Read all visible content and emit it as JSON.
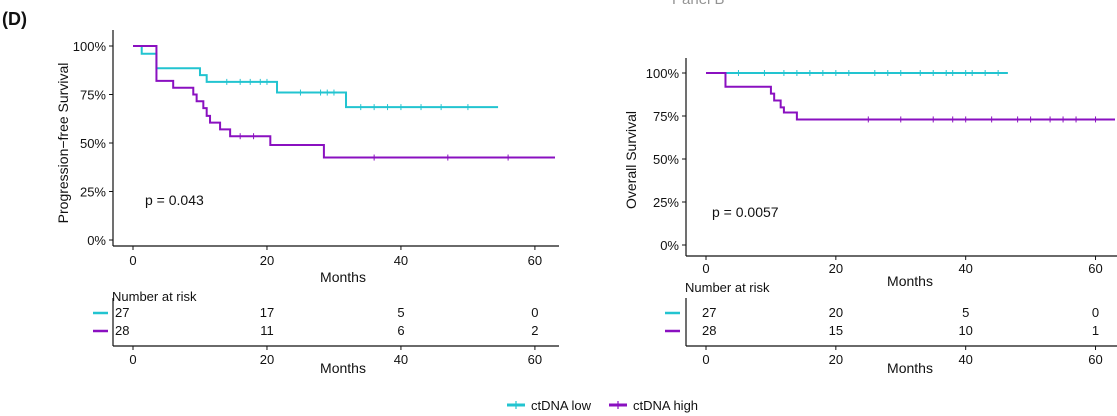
{
  "panel_label": "(D)",
  "panel_header": "Panel B",
  "legend": {
    "items": [
      {
        "label": "ctDNA low",
        "color": "#22c4d0"
      },
      {
        "label": "ctDNA high",
        "color": "#8a10c0"
      }
    ]
  },
  "chart_data": [
    {
      "type": "line",
      "subtype": "kaplan-meier",
      "title": "",
      "ylabel": "Progression−free Survival",
      "xlabel": "Months",
      "x_ticks": [
        0,
        20,
        40,
        60
      ],
      "x_tick_labels": [
        "0",
        "20",
        "40",
        "60"
      ],
      "y_ticks": [
        0,
        25,
        50,
        75,
        100
      ],
      "y_tick_labels": [
        "0%",
        "25%",
        "50%",
        "75%",
        "100%"
      ],
      "xlim": [
        0,
        63
      ],
      "ylim": [
        0,
        100
      ],
      "annotation": "p = 0.043",
      "series": [
        {
          "name": "ctDNA low",
          "color": "#22c4d0",
          "steps": [
            [
              0,
              100
            ],
            [
              1.3,
              96
            ],
            [
              3.5,
              88.5
            ],
            [
              10,
              85
            ],
            [
              11,
              81.5
            ],
            [
              21.5,
              76
            ],
            [
              31.8,
              68.5
            ],
            [
              54.5,
              68.5
            ]
          ],
          "censors": [
            14,
            16,
            17.5,
            19,
            20,
            25,
            28,
            29,
            30,
            34,
            36,
            38,
            40,
            43,
            46,
            50
          ]
        },
        {
          "name": "ctDNA high",
          "color": "#8a10c0",
          "steps": [
            [
              0,
              100
            ],
            [
              3,
              100
            ],
            [
              3.5,
              82
            ],
            [
              6,
              78.5
            ],
            [
              9,
              75
            ],
            [
              9.5,
              71.5
            ],
            [
              10.5,
              68
            ],
            [
              11,
              64
            ],
            [
              11.5,
              60.5
            ],
            [
              13,
              57
            ],
            [
              14.5,
              53.5
            ],
            [
              20.5,
              49
            ],
            [
              28.5,
              42.5
            ],
            [
              63,
              42.5
            ]
          ],
          "censors": [
            16,
            18,
            36,
            47,
            56
          ]
        }
      ],
      "risk_table": {
        "title": "Number at risk",
        "x_ticks": [
          0,
          20,
          40,
          60
        ],
        "xlabel": "Months",
        "rows": [
          {
            "color": "#22c4d0",
            "values": [
              "27",
              "17",
              "5",
              "0"
            ]
          },
          {
            "color": "#8a10c0",
            "values": [
              "28",
              "11",
              "6",
              "2"
            ]
          }
        ]
      }
    },
    {
      "type": "line",
      "subtype": "kaplan-meier",
      "title": "",
      "ylabel": "Overall Survival",
      "xlabel": "Months",
      "x_ticks": [
        0,
        20,
        40,
        60
      ],
      "x_tick_labels": [
        "0",
        "20",
        "40",
        "60"
      ],
      "y_ticks": [
        0,
        25,
        50,
        75,
        100
      ],
      "y_tick_labels": [
        "0%",
        "25%",
        "50%",
        "75%",
        "100%"
      ],
      "xlim": [
        0,
        63
      ],
      "ylim": [
        0,
        100
      ],
      "annotation": "p = 0.0057",
      "series": [
        {
          "name": "ctDNA low",
          "color": "#22c4d0",
          "steps": [
            [
              0,
              100
            ],
            [
              46.5,
              100
            ]
          ],
          "censors": [
            5,
            9,
            12,
            14,
            16,
            18,
            20,
            22,
            26,
            28,
            30,
            33,
            35,
            37,
            38,
            40,
            41,
            43,
            45
          ]
        },
        {
          "name": "ctDNA high",
          "color": "#8a10c0",
          "steps": [
            [
              0,
              100
            ],
            [
              3,
              92
            ],
            [
              10,
              88
            ],
            [
              10.5,
              84
            ],
            [
              11.5,
              80
            ],
            [
              12,
              77
            ],
            [
              14,
              73
            ],
            [
              63,
              73
            ]
          ],
          "censors": [
            25,
            30,
            35,
            38,
            40,
            44,
            48,
            50,
            53,
            55,
            57,
            60
          ]
        }
      ],
      "risk_table": {
        "title": "Number at risk",
        "x_ticks": [
          0,
          20,
          40,
          60
        ],
        "xlabel": "Months",
        "rows": [
          {
            "color": "#22c4d0",
            "values": [
              "27",
              "20",
              "5",
              "0"
            ]
          },
          {
            "color": "#8a10c0",
            "values": [
              "28",
              "15",
              "10",
              "1"
            ]
          }
        ]
      }
    }
  ]
}
